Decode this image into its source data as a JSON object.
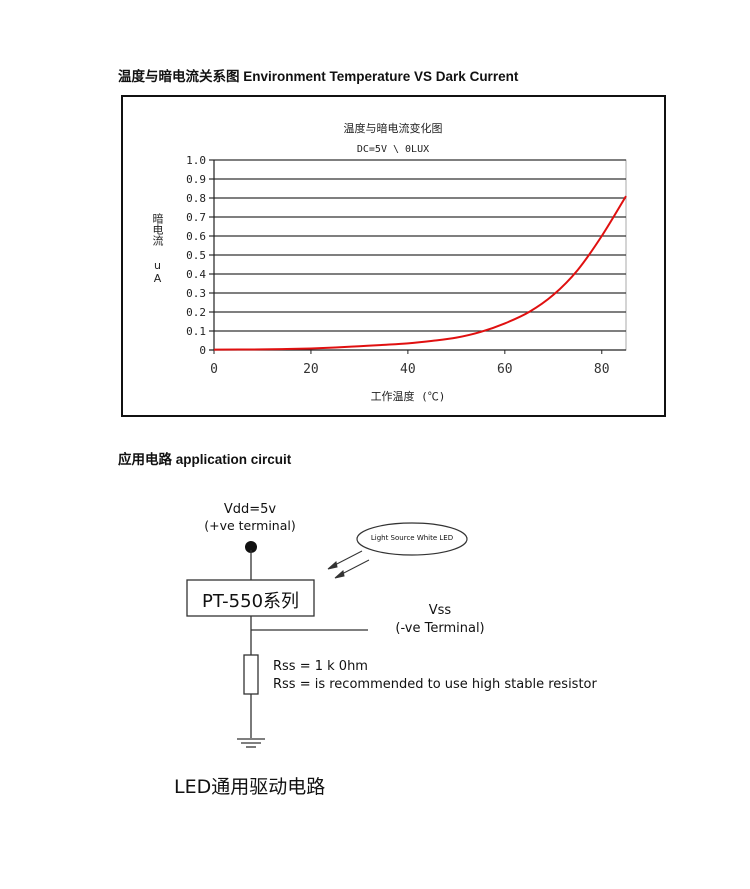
{
  "headings": {
    "chart_section": "温度与暗电流关系图 Environment Temperature VS Dark Current",
    "circuit_section": "应用电路  application circuit"
  },
  "chart_data": {
    "type": "line",
    "title": "温度与暗电流变化图",
    "subtitle": "DC=5V \\ 0LUX",
    "xlabel": "工作温度 (℃)",
    "ylabel": "暗电流 uA",
    "ylabel_chars": [
      "暗",
      "电",
      "流"
    ],
    "ylabel_unit": "uA",
    "xlim": [
      0,
      85
    ],
    "ylim": [
      0,
      1.0
    ],
    "xticks": [
      "0",
      "20",
      "40",
      "60",
      "80"
    ],
    "yticks": [
      "0",
      "0.1",
      "0.2",
      "0.3",
      "0.4",
      "0.5",
      "0.6",
      "0.7",
      "0.8",
      "0.9",
      "1.0"
    ],
    "grid": "horizontal",
    "legend": "none",
    "series": [
      {
        "color": "#e01010",
        "x": [
          0,
          10,
          15,
          20,
          25,
          30,
          35,
          40,
          45,
          50,
          55,
          60,
          65,
          70,
          75,
          80,
          85
        ],
        "y": [
          0.002,
          0.003,
          0.005,
          0.008,
          0.013,
          0.02,
          0.027,
          0.035,
          0.048,
          0.065,
          0.095,
          0.14,
          0.2,
          0.29,
          0.42,
          0.6,
          0.81
        ]
      }
    ]
  },
  "circuit": {
    "vdd_label": "Vdd=5v",
    "vdd_terminal": "(+ve terminal)",
    "light_source": "Light Source White LED",
    "device_label": "PT-550系列",
    "vss_label": "Vss",
    "vss_terminal": "(-ve Terminal)",
    "rss_value": "Rss = 1 k 0hm",
    "rss_note": "Rss = is recommended to use high stable resistor",
    "caption": "LED通用驱动电路"
  }
}
